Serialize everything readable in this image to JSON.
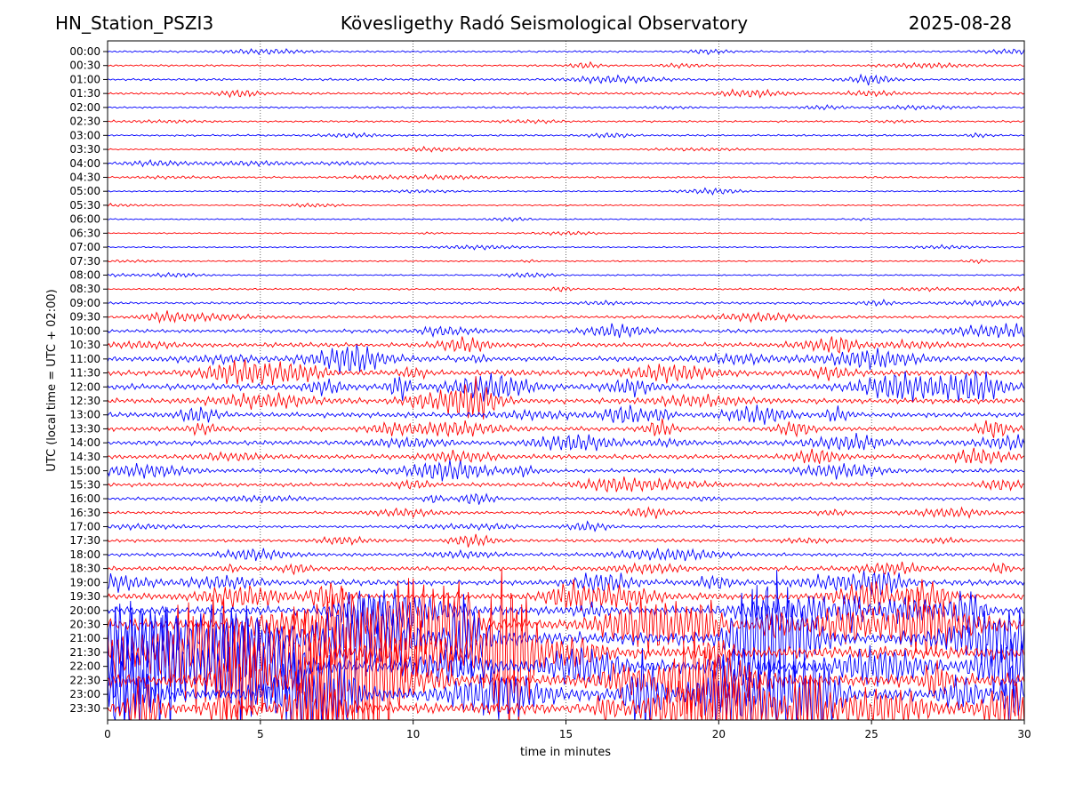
{
  "header": {
    "station": "HN_Station_PSZI3",
    "title": "Kövesligethy Radó Seismological Observatory",
    "date": "2025-08-28"
  },
  "chart_data": {
    "type": "line",
    "subtype": "helicorder",
    "xlabel": "time in minutes",
    "ylabel": "UTC (local time = UTC + 02:00)",
    "xlim": [
      0,
      30
    ],
    "x_ticks": [
      0,
      5,
      10,
      15,
      20,
      25,
      30
    ],
    "grid": "vertical dotted lines at 5-minute ticks",
    "trace_colors": [
      "#0000ff",
      "#ff0000"
    ],
    "rows": [
      {
        "label": "00:00",
        "activity": 0.12
      },
      {
        "label": "00:30",
        "activity": 0.12
      },
      {
        "label": "01:00",
        "activity": 0.18
      },
      {
        "label": "01:30",
        "activity": 0.18
      },
      {
        "label": "02:00",
        "activity": 0.12
      },
      {
        "label": "02:30",
        "activity": 0.12
      },
      {
        "label": "03:00",
        "activity": 0.12
      },
      {
        "label": "03:30",
        "activity": 0.08
      },
      {
        "label": "04:00",
        "activity": 0.1
      },
      {
        "label": "04:30",
        "activity": 0.12
      },
      {
        "label": "05:00",
        "activity": 0.08
      },
      {
        "label": "05:30",
        "activity": 0.06
      },
      {
        "label": "06:00",
        "activity": 0.06
      },
      {
        "label": "06:30",
        "activity": 0.05
      },
      {
        "label": "07:00",
        "activity": 0.06
      },
      {
        "label": "07:30",
        "activity": 0.07
      },
      {
        "label": "08:00",
        "activity": 0.08
      },
      {
        "label": "08:30",
        "activity": 0.12
      },
      {
        "label": "09:00",
        "activity": 0.18
      },
      {
        "label": "09:30",
        "activity": 0.22
      },
      {
        "label": "10:00",
        "activity": 0.32
      },
      {
        "label": "10:30",
        "activity": 0.42
      },
      {
        "label": "11:00",
        "activity": 0.5
      },
      {
        "label": "11:30",
        "activity": 0.55
      },
      {
        "label": "12:00",
        "activity": 0.6
      },
      {
        "label": "12:30",
        "activity": 0.55
      },
      {
        "label": "13:00",
        "activity": 0.52
      },
      {
        "label": "13:30",
        "activity": 0.45
      },
      {
        "label": "14:00",
        "activity": 0.48
      },
      {
        "label": "14:30",
        "activity": 0.42
      },
      {
        "label": "15:00",
        "activity": 0.4
      },
      {
        "label": "15:30",
        "activity": 0.36
      },
      {
        "label": "16:00",
        "activity": 0.28
      },
      {
        "label": "16:30",
        "activity": 0.24
      },
      {
        "label": "17:00",
        "activity": 0.22
      },
      {
        "label": "17:30",
        "activity": 0.28
      },
      {
        "label": "18:00",
        "activity": 0.32
      },
      {
        "label": "18:30",
        "activity": 0.42
      },
      {
        "label": "19:00",
        "activity": 0.55
      },
      {
        "label": "19:30",
        "activity": 0.7
      },
      {
        "label": "20:00",
        "activity": 0.9
      },
      {
        "label": "20:30",
        "activity": 1.2
      },
      {
        "label": "21:00",
        "activity": 1.4
      },
      {
        "label": "21:30",
        "activity": 1.4
      },
      {
        "label": "22:00",
        "activity": 1.4
      },
      {
        "label": "22:30",
        "activity": 1.4
      },
      {
        "label": "23:00",
        "activity": 1.4
      },
      {
        "label": "23:30",
        "activity": 1.3
      }
    ]
  }
}
